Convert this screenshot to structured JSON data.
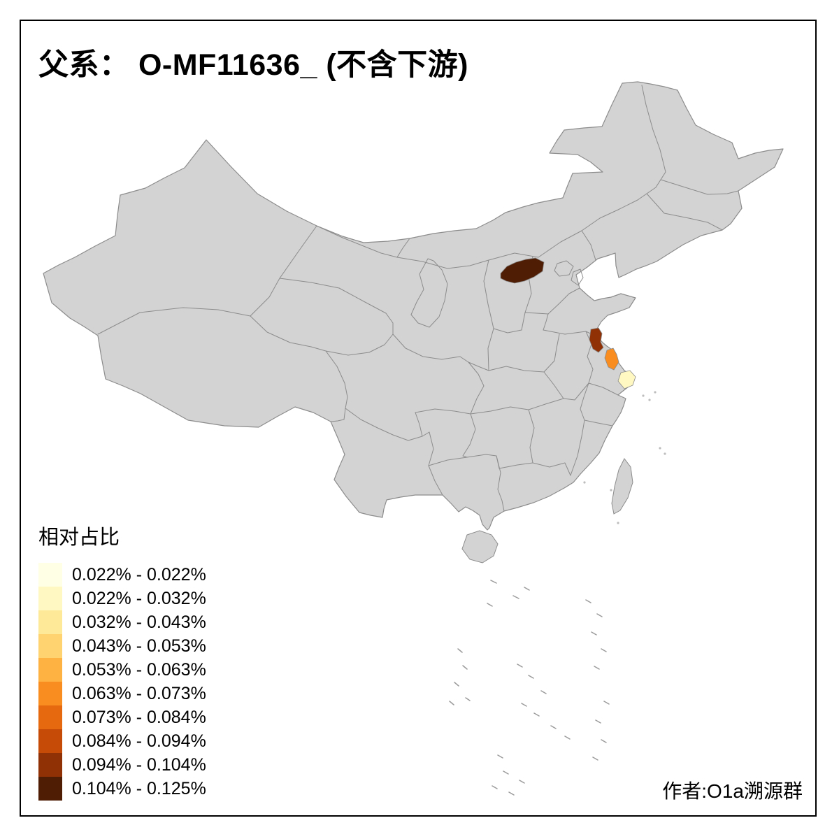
{
  "title": "父系： O-MF11636_ (不含下游)",
  "legend": {
    "title": "相对占比",
    "items": [
      {
        "label": "0.022% - 0.022%",
        "color": "#FFFFE5"
      },
      {
        "label": "0.022% - 0.032%",
        "color": "#FFF8C2"
      },
      {
        "label": "0.032% - 0.043%",
        "color": "#FEE999"
      },
      {
        "label": "0.043% - 0.053%",
        "color": "#FED370"
      },
      {
        "label": "0.053% - 0.063%",
        "color": "#FEB241"
      },
      {
        "label": "0.063% - 0.073%",
        "color": "#F98D20"
      },
      {
        "label": "0.073% - 0.084%",
        "color": "#E66910"
      },
      {
        "label": "0.084% - 0.094%",
        "color": "#C54B07"
      },
      {
        "label": "0.094% - 0.104%",
        "color": "#8F3105"
      },
      {
        "label": "0.104% - 0.125%",
        "color": "#4F1D04"
      }
    ]
  },
  "attribution": "作者:O1a溯源群",
  "map": {
    "land_fill": "#D3D3D3",
    "border_color": "#8C8C8C",
    "highlighted_regions": [
      {
        "name": "region-north-china",
        "color": "#4F1D04"
      },
      {
        "name": "region-north-jiangsu",
        "color": "#8F3105"
      },
      {
        "name": "region-central-jiangsu-coast",
        "color": "#F98D20"
      },
      {
        "name": "region-yangtze-mouth",
        "color": "#FFF8C2"
      }
    ]
  }
}
